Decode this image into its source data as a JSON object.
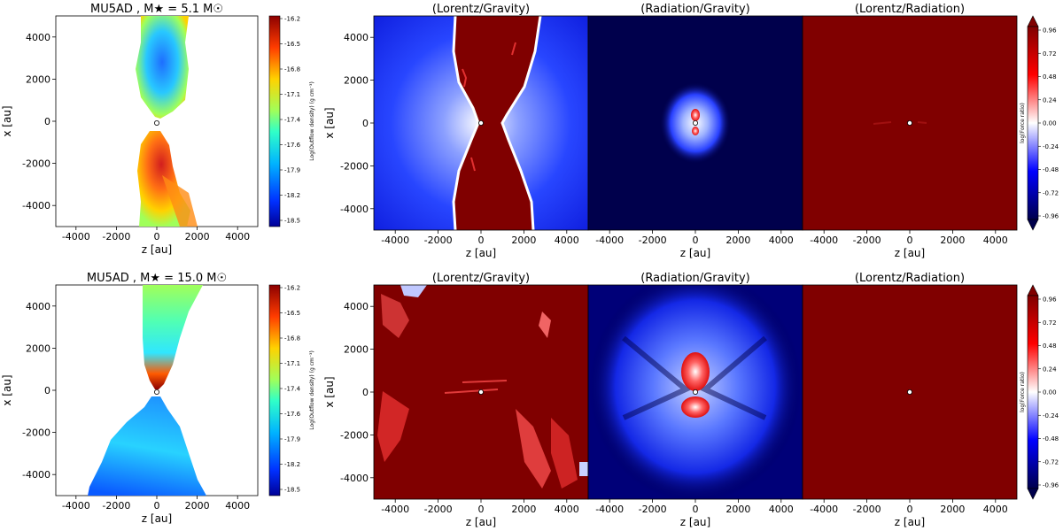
{
  "rows": [
    {
      "density": {
        "title": "MU5AD , M★ = 5.1 M☉",
        "colorbar_label": "Log(Outflow density) (g cm⁻³)",
        "colorbar_ticks": [
          "-16.2",
          "-16.5",
          "-16.8",
          "-17.1",
          "-17.4",
          "-17.6",
          "-17.9",
          "-18.2",
          "-18.5"
        ]
      },
      "ratio_panels": [
        {
          "title": "(Lorentz/Gravity)"
        },
        {
          "title": "(Radiation/Gravity)"
        },
        {
          "title": "(Lorentz/Radiation)"
        }
      ],
      "ratio_colorbar": {
        "label": "log(Force ratio)",
        "ticks": [
          "0.96",
          "0.72",
          "0.48",
          "0.24",
          "0.00",
          "-0.24",
          "-0.48",
          "-0.72",
          "-0.96"
        ]
      }
    },
    {
      "density": {
        "title": "MU5AD , M★ = 15.0 M☉",
        "colorbar_label": "Log(Outflow density) (g cm⁻³)",
        "colorbar_ticks": [
          "-16.2",
          "-16.5",
          "-16.8",
          "-17.1",
          "-17.4",
          "-17.6",
          "-17.9",
          "-18.2",
          "-18.5"
        ]
      },
      "ratio_panels": [
        {
          "title": "(Lorentz/Gravity)"
        },
        {
          "title": "(Radiation/Gravity)"
        },
        {
          "title": "(Lorentz/Radiation)"
        }
      ],
      "ratio_colorbar": {
        "label": "log(Force ratio)",
        "ticks": [
          "0.96",
          "0.72",
          "0.48",
          "0.24",
          "0.00",
          "-0.24",
          "-0.48",
          "-0.72",
          "-0.96"
        ]
      }
    }
  ],
  "chart_data": {
    "type": "heatmap",
    "xlabel": "z [au]",
    "ylabel": "x [au]",
    "xlim": [
      -5000,
      5000
    ],
    "ylim": [
      -5000,
      5000
    ],
    "x_ticks": [
      -4000,
      -2000,
      0,
      2000,
      4000
    ],
    "y_ticks": [
      -4000,
      -2000,
      0,
      2000,
      4000
    ],
    "density_color_range": [
      -18.5,
      -16.2
    ],
    "ratio_color_range": [
      -0.96,
      0.96
    ],
    "colormaps": {
      "density": "jet",
      "force_ratio": "seismic"
    },
    "colors": {
      "ratio_high": "#800000",
      "ratio_low": "#00004c",
      "ratio_zero": "#ffffff",
      "density_high": "#dc1e1e",
      "density_low": "#1e32c8"
    }
  }
}
